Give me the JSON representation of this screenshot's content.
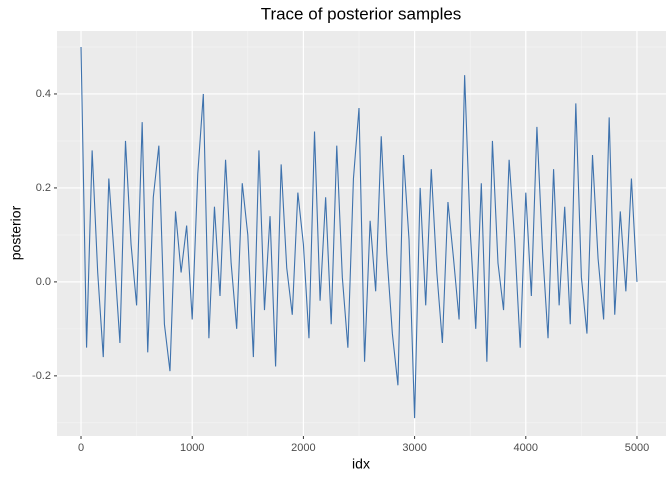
{
  "chart_data": {
    "type": "line",
    "title": "Trace of posterior samples",
    "x_label": "idx",
    "y_label": "posterior",
    "x": [
      0,
      50,
      100,
      150,
      200,
      250,
      300,
      350,
      400,
      450,
      500,
      550,
      600,
      650,
      700,
      750,
      800,
      850,
      900,
      950,
      1000,
      1050,
      1100,
      1150,
      1200,
      1250,
      1300,
      1350,
      1400,
      1450,
      1500,
      1550,
      1600,
      1650,
      1700,
      1750,
      1800,
      1850,
      1900,
      1950,
      2000,
      2050,
      2100,
      2150,
      2200,
      2250,
      2300,
      2350,
      2400,
      2450,
      2500,
      2550,
      2600,
      2650,
      2700,
      2750,
      2800,
      2850,
      2900,
      2950,
      3000,
      3050,
      3100,
      3150,
      3200,
      3250,
      3300,
      3350,
      3400,
      3450,
      3500,
      3550,
      3600,
      3650,
      3700,
      3750,
      3800,
      3850,
      3900,
      3950,
      4000,
      4050,
      4100,
      4150,
      4200,
      4250,
      4300,
      4350,
      4400,
      4450,
      4500,
      4550,
      4600,
      4650,
      4700,
      4750,
      4800,
      4850,
      4900,
      4950,
      5000
    ],
    "values": [
      0.5,
      -0.14,
      0.28,
      0.02,
      -0.16,
      0.22,
      0.05,
      -0.13,
      0.3,
      0.08,
      -0.05,
      0.34,
      -0.15,
      0.18,
      0.29,
      -0.09,
      -0.19,
      0.15,
      0.02,
      0.12,
      -0.08,
      0.23,
      0.4,
      -0.12,
      0.16,
      -0.03,
      0.26,
      0.04,
      -0.1,
      0.21,
      0.1,
      -0.16,
      0.28,
      -0.06,
      0.14,
      -0.18,
      0.25,
      0.03,
      -0.07,
      0.19,
      0.08,
      -0.12,
      0.32,
      -0.04,
      0.18,
      -0.09,
      0.29,
      0.01,
      -0.14,
      0.22,
      0.37,
      -0.17,
      0.13,
      -0.02,
      0.31,
      0.06,
      -0.11,
      -0.22,
      0.27,
      0.09,
      -0.29,
      0.2,
      -0.05,
      0.24,
      0.02,
      -0.13,
      0.17,
      0.05,
      -0.08,
      0.44,
      0.11,
      -0.1,
      0.21,
      -0.17,
      0.3,
      0.04,
      -0.06,
      0.26,
      0.09,
      -0.14,
      0.19,
      -0.03,
      0.33,
      0.07,
      -0.12,
      0.24,
      -0.05,
      0.16,
      -0.09,
      0.38,
      0.01,
      -0.11,
      0.27,
      0.05,
      -0.08,
      0.35,
      -0.07,
      0.15,
      -0.02,
      0.22,
      0.0
    ],
    "color": "#3e72ad",
    "xlim": [
      -216,
      5261
    ],
    "ylim": [
      -0.328,
      0.534
    ],
    "xticks": [
      0,
      1000,
      2000,
      3000,
      4000,
      5000
    ],
    "yticks": [
      -0.2,
      {
        "value": 0,
        "label": "0.0"
      },
      0.2,
      0.4
    ],
    "minor_xticks": [
      500,
      1500,
      2500,
      3500,
      4500
    ],
    "minor_yticks": [
      -0.3,
      -0.1,
      0.1,
      0.3,
      0.5
    ],
    "grid": true
  }
}
